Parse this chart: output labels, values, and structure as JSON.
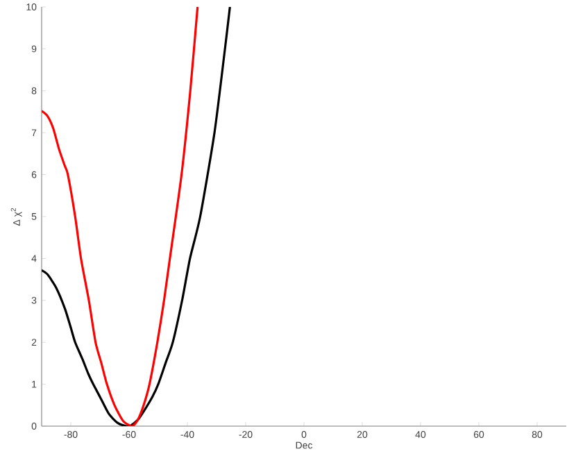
{
  "chart_data": {
    "type": "line",
    "xlabel": "Dec",
    "ylabel": "Δ χ$^{2}$",
    "xlim": [
      -90,
      90
    ],
    "ylim": [
      0,
      10
    ],
    "xticks": [
      -80,
      -60,
      -40,
      -20,
      0,
      20,
      40,
      60,
      80
    ],
    "yticks": [
      0,
      1,
      2,
      3,
      4,
      5,
      6,
      7,
      8,
      9,
      10
    ],
    "marker": "none",
    "line_style": "solid",
    "series": [
      {
        "color": "#000000",
        "x": [
          -90,
          -88,
          -85,
          -82,
          -80,
          -78.5,
          -76,
          -74,
          -72.3,
          -70,
          -67,
          -64,
          -61,
          -59.5,
          -57,
          -55,
          -52,
          -50,
          -47.5,
          -45,
          -41.8,
          -39.1,
          -35.6,
          -30.7,
          -27.1,
          -25.4
        ],
        "values": [
          3.72,
          3.62,
          3.3,
          2.8,
          2.35,
          2.0,
          1.6,
          1.25,
          1.0,
          0.7,
          0.3,
          0.08,
          0.0,
          0.01,
          0.15,
          0.35,
          0.7,
          1.0,
          1.5,
          2.0,
          3.0,
          4.0,
          5.0,
          7.0,
          9.0,
          10.0
        ]
      },
      {
        "color": "#ff0000",
        "x": [
          -90,
          -88,
          -86,
          -84,
          -82,
          -81,
          -78.5,
          -76.5,
          -73.8,
          -71.5,
          -69.5,
          -67.6,
          -65,
          -62,
          -59,
          -57,
          -55,
          -53,
          -50.3,
          -48,
          -46,
          -42,
          -39,
          -36.5
        ],
        "values": [
          7.52,
          7.4,
          7.1,
          6.6,
          6.2,
          6.0,
          5.0,
          4.0,
          3.0,
          2.0,
          1.5,
          1.0,
          0.5,
          0.12,
          0.0,
          0.15,
          0.5,
          1.0,
          2.0,
          3.0,
          4.0,
          6.0,
          8.0,
          10.0
        ]
      }
    ]
  }
}
